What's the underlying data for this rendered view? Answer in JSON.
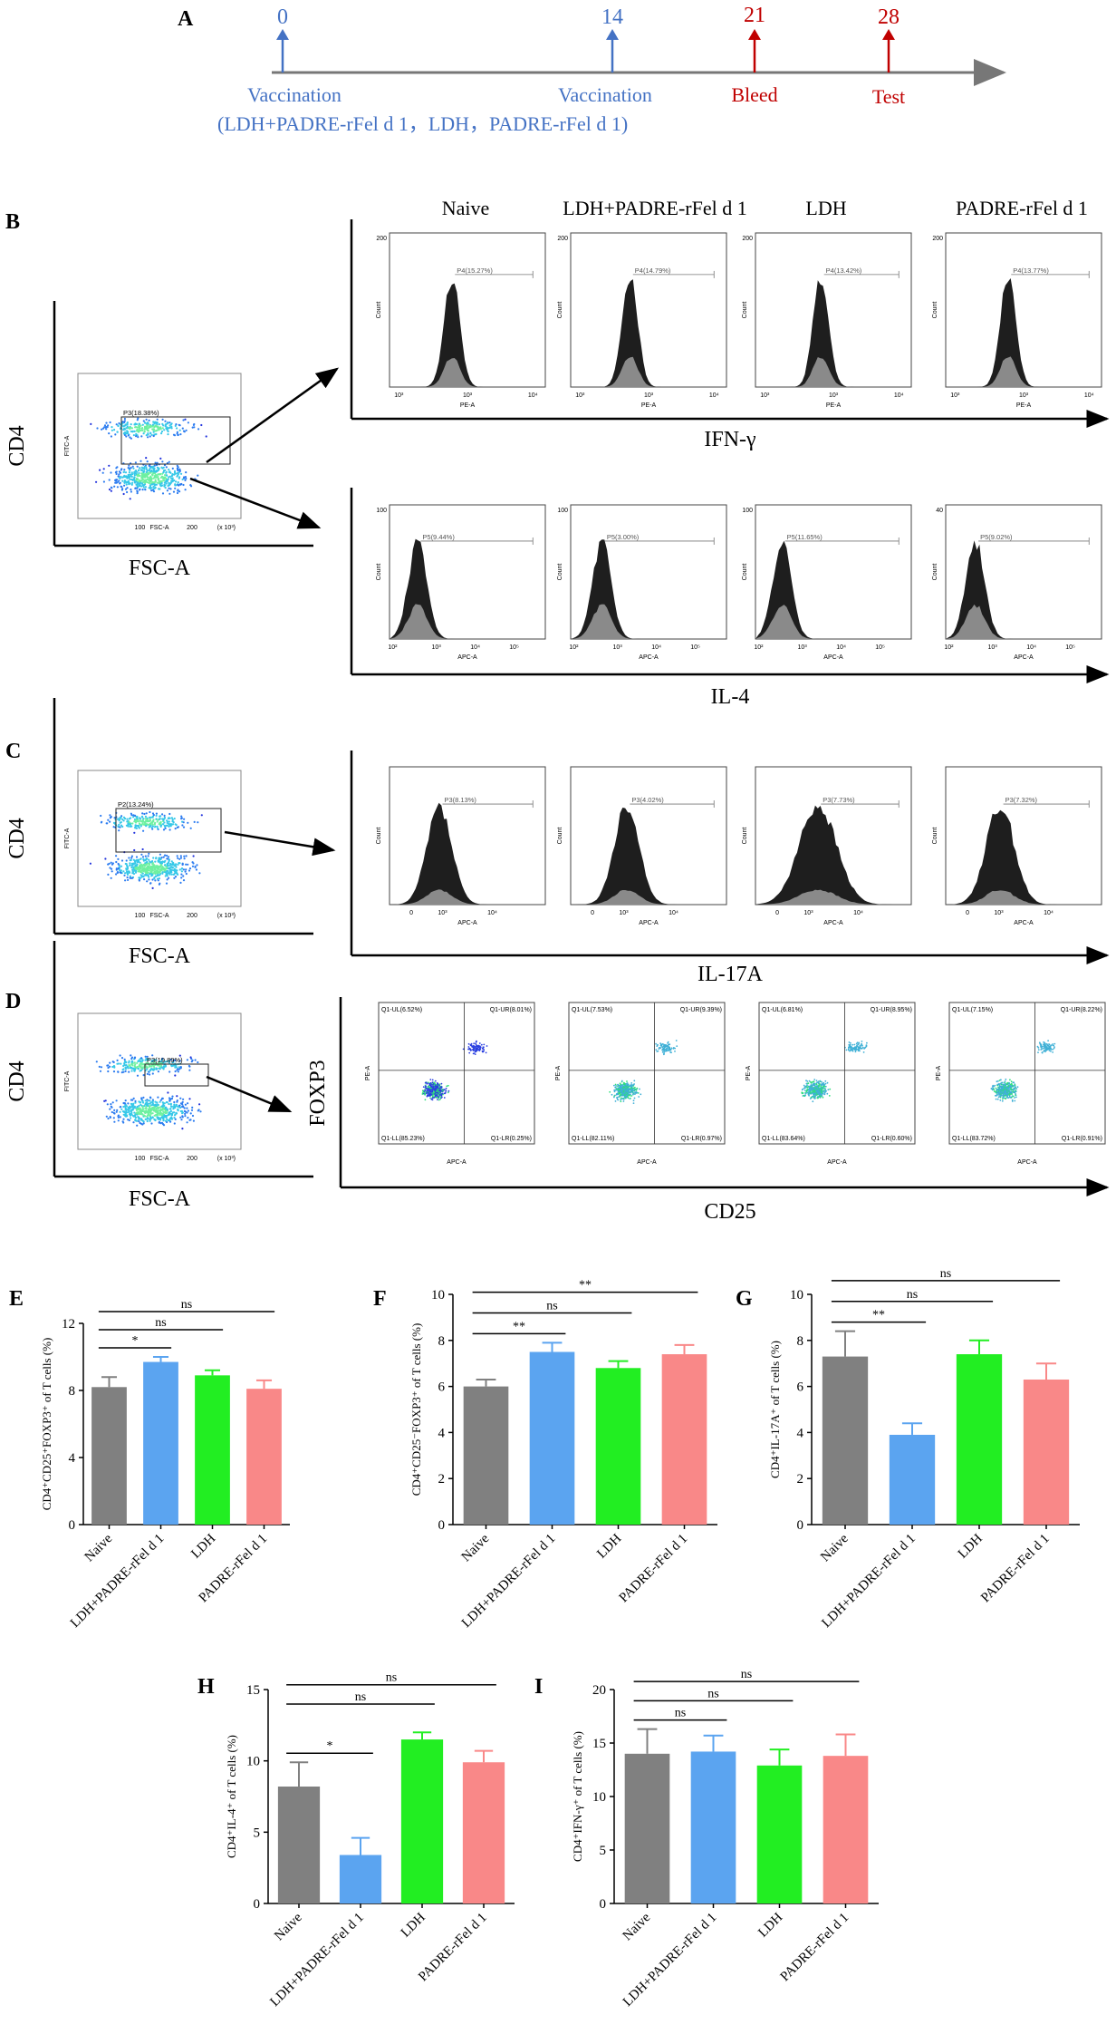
{
  "colors": {
    "blue": "#4472C4",
    "red": "#C00000",
    "bar_gray": "#808080",
    "bar_blue": "#5BA4F0",
    "bar_green": "#22EE22",
    "bar_pink": "#F98888",
    "hist_dark": "#1e1e1e",
    "hist_light": "#8a8a8a",
    "dot_blue": "#2a3fe0",
    "dot_teal": "#3fb0d6"
  },
  "panelA": {
    "letter": "A",
    "events": [
      {
        "day": "0",
        "label": "Vaccination",
        "color": "blue"
      },
      {
        "day": "14",
        "label": "Vaccination",
        "color": "blue"
      },
      {
        "day": "21",
        "label": "Bleed",
        "color": "red"
      },
      {
        "day": "28",
        "label": "Test",
        "color": "red"
      }
    ],
    "groups_note": "(LDH+PADRE-rFel d 1，LDH，PADRE-rFel d 1)"
  },
  "group_names": [
    "Naive",
    "LDH+PADRE-rFel d 1",
    "LDH",
    "PADRE-rFel d 1"
  ],
  "flow": {
    "B": {
      "letter": "B",
      "gate": {
        "y_axis": "CD4",
        "x_axis": "FSC-A",
        "gate_label": "P3(18.38%)",
        "inner_y": "FITC-A",
        "inner_x": "FSC-A",
        "unit": "(x 10³)"
      },
      "ifng": {
        "marker": "IFN-γ",
        "channel": "PE-A",
        "ylabel": "Count",
        "gates": [
          "P4(15.27%)",
          "P4(14.79%)",
          "P4(13.42%)",
          "P4(13.77%)"
        ],
        "ymax": [
          "200",
          "200",
          "200",
          "200"
        ]
      },
      "il4": {
        "marker": "IL-4",
        "channel": "APC-A",
        "ylabel": "Count",
        "gates": [
          "P5(9.44%)",
          "P5(3.00%)",
          "P5(11.65%)",
          "P5(9.02%)"
        ],
        "ymax": [
          "100",
          "100",
          "100",
          "40"
        ]
      }
    },
    "C": {
      "letter": "C",
      "gate": {
        "y_axis": "CD4",
        "x_axis": "FSC-A",
        "gate_label": "P2(13.24%)",
        "inner_y": "FITC-A",
        "inner_x": "FSC-A",
        "unit": "(x 10³)"
      },
      "il17": {
        "marker": "IL-17A",
        "channel": "APC-A",
        "ylabel": "Count",
        "gates": [
          "P3(8.13%)",
          "P3(4.02%)",
          "P3(7.73%)",
          "P3(7.32%)"
        ]
      }
    },
    "D": {
      "letter": "D",
      "gate": {
        "y_axis": "CD4",
        "x_axis": "FSC-A",
        "gate_label": "P3(19.89%)",
        "inner_y": "FITC-A",
        "inner_x": "FSC-A",
        "unit": "(x 10³)"
      },
      "quad": {
        "y_axis": "FOXP3",
        "x_axis": "CD25",
        "inner_x": "APC-A",
        "inner_y": "PE-A",
        "plots": [
          {
            "UL": "Q1-UL(6.52%)",
            "UR": "Q1-UR(8.01%)",
            "LL": "Q1-LL(85.23%)",
            "LR": "Q1-LR(0.25%)"
          },
          {
            "UL": "Q1-UL(7.53%)",
            "UR": "Q1-UR(9.39%)",
            "LL": "Q1-LL(82.11%)",
            "LR": "Q1-LR(0.97%)"
          },
          {
            "UL": "Q1-UL(6.81%)",
            "UR": "Q1-UR(8.95%)",
            "LL": "Q1-LL(83.64%)",
            "LR": "Q1-LR(0.60%)"
          },
          {
            "UL": "Q1-UL(7.15%)",
            "UR": "Q1-UR(8.22%)",
            "LL": "Q1-LL(83.72%)",
            "LR": "Q1-LR(0.91%)"
          }
        ]
      }
    }
  },
  "chart_data": [
    {
      "panel": "E",
      "type": "bar",
      "categories": [
        "Naive",
        "LDH+PADRE-rFel d 1",
        "LDH",
        "PADRE-rFel d 1"
      ],
      "values": [
        8.2,
        9.7,
        8.9,
        8.1
      ],
      "errors": [
        0.6,
        0.3,
        0.3,
        0.5
      ],
      "ylabel": "CD4⁺CD25⁺FOXP3⁺ of T cells (%)",
      "ylim": [
        0,
        12
      ],
      "yticks": [
        0,
        4,
        8,
        12
      ],
      "sig": [
        {
          "pair": [
            0,
            1
          ],
          "label": "*"
        },
        {
          "pair": [
            0,
            2
          ],
          "label": "ns"
        },
        {
          "pair": [
            0,
            3
          ],
          "label": "ns"
        }
      ]
    },
    {
      "panel": "F",
      "type": "bar",
      "categories": [
        "Naive",
        "LDH+PADRE-rFel d 1",
        "LDH",
        "PADRE-rFel d 1"
      ],
      "values": [
        6.0,
        7.5,
        6.8,
        7.4
      ],
      "errors": [
        0.3,
        0.4,
        0.3,
        0.4
      ],
      "ylabel": "CD4⁺CD25⁻FOXP3⁺ of T cells (%)",
      "ylim": [
        0,
        10
      ],
      "yticks": [
        0,
        2,
        4,
        6,
        8,
        10
      ],
      "sig": [
        {
          "pair": [
            0,
            1
          ],
          "label": "**"
        },
        {
          "pair": [
            0,
            2
          ],
          "label": "ns"
        },
        {
          "pair": [
            0,
            3
          ],
          "label": "**"
        }
      ]
    },
    {
      "panel": "G",
      "type": "bar",
      "categories": [
        "Naive",
        "LDH+PADRE-rFel d 1",
        "LDH",
        "PADRE-rFel d 1"
      ],
      "values": [
        7.3,
        3.9,
        7.4,
        6.3
      ],
      "errors": [
        1.1,
        0.5,
        0.6,
        0.7
      ],
      "ylabel": "CD4⁺IL-17A⁺ of T cells (%)",
      "ylim": [
        0,
        10
      ],
      "yticks": [
        0,
        2,
        4,
        6,
        8,
        10
      ],
      "sig": [
        {
          "pair": [
            0,
            1
          ],
          "label": "**"
        },
        {
          "pair": [
            0,
            2
          ],
          "label": "ns"
        },
        {
          "pair": [
            0,
            3
          ],
          "label": "ns"
        }
      ]
    },
    {
      "panel": "H",
      "type": "bar",
      "categories": [
        "Naive",
        "LDH+PADRE-rFel d 1",
        "LDH",
        "PADRE-rFel d 1"
      ],
      "values": [
        8.2,
        3.4,
        11.5,
        9.9
      ],
      "errors": [
        1.7,
        1.2,
        0.5,
        0.8
      ],
      "ylabel": "CD4⁺IL-4⁺ of T cells (%)",
      "ylim": [
        0,
        15
      ],
      "yticks": [
        0,
        5,
        10,
        15
      ],
      "sig": [
        {
          "pair": [
            0,
            1
          ],
          "label": "*"
        },
        {
          "pair": [
            0,
            2
          ],
          "label": "ns"
        },
        {
          "pair": [
            0,
            3
          ],
          "label": "ns"
        }
      ]
    },
    {
      "panel": "I",
      "type": "bar",
      "categories": [
        "Naive",
        "LDH+PADRE-rFel d 1",
        "LDH",
        "PADRE-rFel d 1"
      ],
      "values": [
        14.0,
        14.2,
        12.9,
        13.8
      ],
      "errors": [
        2.3,
        1.5,
        1.5,
        2.0
      ],
      "ylabel": "CD4⁺IFN-γ⁺ of T cells (%)",
      "ylim": [
        0,
        20
      ],
      "yticks": [
        0,
        5,
        10,
        15,
        20
      ],
      "sig": [
        {
          "pair": [
            0,
            1
          ],
          "label": "ns"
        },
        {
          "pair": [
            0,
            2
          ],
          "label": "ns"
        },
        {
          "pair": [
            0,
            3
          ],
          "label": "ns"
        }
      ]
    }
  ]
}
